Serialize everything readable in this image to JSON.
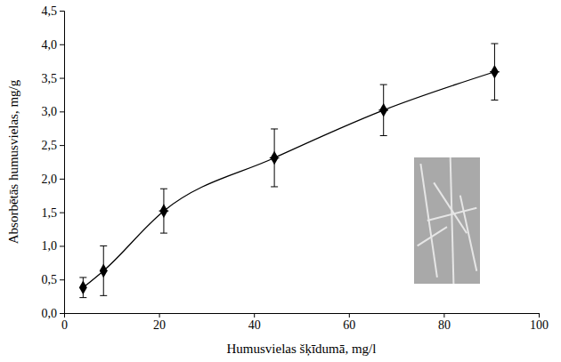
{
  "chart_data": {
    "type": "line",
    "x_label": "Humusvielas šķīdumā, mg/l",
    "y_label": "Absorbētās humusvielas, mg/g",
    "x": [
      4,
      8.3,
      21,
      44.3,
      67.3,
      90.7
    ],
    "series": [
      {
        "values": [
          0.38,
          0.63,
          1.52,
          2.31,
          3.02,
          3.59
        ],
        "errors": [
          0.15,
          0.37,
          0.33,
          0.43,
          0.38,
          0.42
        ],
        "x_errors": [
          0.6,
          0.8,
          1,
          1,
          1,
          1
        ],
        "color": "#000000",
        "marker": "diamond",
        "line_style": "solid"
      }
    ],
    "xlim": [
      0,
      100
    ],
    "xticks": [
      0,
      20,
      40,
      60,
      80,
      100
    ],
    "ylim": [
      0,
      4.5
    ],
    "yticks": [
      {
        "value": 0,
        "label": "0,0"
      },
      {
        "value": 0.5,
        "label": "0,5"
      },
      {
        "value": 1,
        "label": "1,0"
      },
      {
        "value": 1.5,
        "label": "1,5"
      },
      {
        "value": 2,
        "label": "2,0"
      },
      {
        "value": 2.5,
        "label": "2,5"
      },
      {
        "value": 3,
        "label": "3,0"
      },
      {
        "value": 3.5,
        "label": "3,5"
      },
      {
        "value": 4,
        "label": "4,0"
      },
      {
        "value": 4.5,
        "label": "4,5"
      }
    ],
    "grid": false
  }
}
